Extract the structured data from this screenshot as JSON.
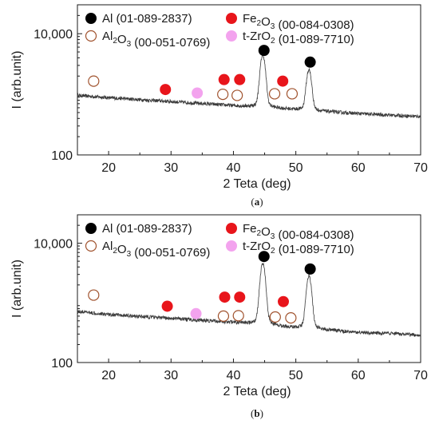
{
  "chart_data": [
    {
      "type": "line",
      "panel_label": "(a)",
      "bold_letter": "a",
      "xlabel": "2 Teta (deg)",
      "ylabel": "I (arb.unit)",
      "xlim": [
        15,
        70
      ],
      "x_ticks": [
        20,
        30,
        40,
        50,
        60,
        70
      ],
      "y_scale": "log",
      "ylim": [
        100,
        30000
      ],
      "y_ticks": [
        {
          "value": 100,
          "label": "100"
        },
        {
          "value": 10000,
          "label": "10,000"
        }
      ],
      "legend": [
        {
          "symbol": "filled-circle",
          "color": "#000000",
          "base": "Al",
          "sub": "",
          "rest": "",
          "sub2": "",
          "code": "(01-089-2837)"
        },
        {
          "symbol": "filled-circle",
          "color": "#e8151b",
          "base": "Fe",
          "sub": "2",
          "rest": "O",
          "sub2": "3",
          "code": "(00-084-0308)"
        },
        {
          "symbol": "open-circle",
          "color": "#a0522d",
          "base": "Al",
          "sub": "2",
          "rest": "O",
          "sub2": "3",
          "code": "(00-051-0769)"
        },
        {
          "symbol": "filled-circle",
          "color": "#f3a3ee",
          "base": "t-ZrO",
          "sub": "2",
          "rest": "",
          "sub2": "",
          "code": "(01-089-7710)"
        }
      ],
      "series": [
        {
          "baseline": [
            [
              15,
              960
            ],
            [
              20,
              880
            ],
            [
              30,
              760
            ],
            [
              40,
              650
            ],
            [
              50,
              560
            ],
            [
              60,
              480
            ],
            [
              70,
              430
            ]
          ],
          "peaks": [
            {
              "x": 44.7,
              "height": 3600,
              "width": 0.35
            },
            {
              "x": 52.1,
              "height": 1850,
              "width": 0.35
            }
          ]
        }
      ],
      "markers": [
        {
          "phase": "Al",
          "x": 44.9,
          "y": 5300
        },
        {
          "phase": "Al",
          "x": 52.3,
          "y": 3400
        },
        {
          "phase": "Fe2O3",
          "x": 29.1,
          "y": 1200
        },
        {
          "phase": "Fe2O3",
          "x": 38.5,
          "y": 1750
        },
        {
          "phase": "Fe2O3",
          "x": 41.0,
          "y": 1750
        },
        {
          "phase": "Fe2O3",
          "x": 47.9,
          "y": 1650
        },
        {
          "phase": "t-ZrO2",
          "x": 34.2,
          "y": 1050
        },
        {
          "phase": "Al2O3",
          "x": 17.6,
          "y": 1650
        },
        {
          "phase": "Al2O3",
          "x": 38.3,
          "y": 1000
        },
        {
          "phase": "Al2O3",
          "x": 40.6,
          "y": 960
        },
        {
          "phase": "Al2O3",
          "x": 46.6,
          "y": 1020
        },
        {
          "phase": "Al2O3",
          "x": 49.4,
          "y": 1020
        }
      ]
    },
    {
      "type": "line",
      "panel_label": "(b)",
      "bold_letter": "b",
      "xlabel": "2 Teta (deg)",
      "ylabel": "I (arb.unit)",
      "xlim": [
        15,
        70
      ],
      "x_ticks": [
        20,
        30,
        40,
        50,
        60,
        70
      ],
      "y_scale": "log",
      "ylim": [
        100,
        30000
      ],
      "y_ticks": [
        {
          "value": 100,
          "label": "100"
        },
        {
          "value": 10000,
          "label": "10,000"
        }
      ],
      "legend": [
        {
          "symbol": "filled-circle",
          "color": "#000000",
          "base": "Al",
          "sub": "",
          "rest": "",
          "sub2": "",
          "code": "(01-089-2837)"
        },
        {
          "symbol": "filled-circle",
          "color": "#e8151b",
          "base": "Fe",
          "sub": "2",
          "rest": "O",
          "sub2": "3",
          "code": "(00-084-0308)"
        },
        {
          "symbol": "open-circle",
          "color": "#a0522d",
          "base": "Al",
          "sub": "2",
          "rest": "O",
          "sub2": "3",
          "code": "(00-051-0769)"
        },
        {
          "symbol": "filled-circle",
          "color": "#f3a3ee",
          "base": "t-ZrO",
          "sub": "2",
          "rest": "",
          "sub2": "",
          "code": "(01-089-7710)"
        }
      ],
      "series": [
        {
          "baseline": [
            [
              15,
              720
            ],
            [
              20,
              640
            ],
            [
              30,
              550
            ],
            [
              40,
              470
            ],
            [
              50,
              380
            ],
            [
              60,
              320
            ],
            [
              70,
              290
            ]
          ],
          "peaks": [
            {
              "x": 44.7,
              "height": 3900,
              "width": 0.35
            },
            {
              "x": 52.1,
              "height": 2300,
              "width": 0.35
            }
          ]
        }
      ],
      "markers": [
        {
          "phase": "Al",
          "x": 44.9,
          "y": 6000
        },
        {
          "phase": "Al",
          "x": 52.3,
          "y": 3700
        },
        {
          "phase": "Fe2O3",
          "x": 29.4,
          "y": 880
        },
        {
          "phase": "Fe2O3",
          "x": 38.6,
          "y": 1250
        },
        {
          "phase": "Fe2O3",
          "x": 41.0,
          "y": 1250
        },
        {
          "phase": "Fe2O3",
          "x": 48.0,
          "y": 1050
        },
        {
          "phase": "t-ZrO2",
          "x": 34.0,
          "y": 660
        },
        {
          "phase": "Al2O3",
          "x": 17.6,
          "y": 1350
        },
        {
          "phase": "Al2O3",
          "x": 38.4,
          "y": 600
        },
        {
          "phase": "Al2O3",
          "x": 40.8,
          "y": 610
        },
        {
          "phase": "Al2O3",
          "x": 46.7,
          "y": 580
        },
        {
          "phase": "Al2O3",
          "x": 49.2,
          "y": 560
        }
      ]
    }
  ]
}
